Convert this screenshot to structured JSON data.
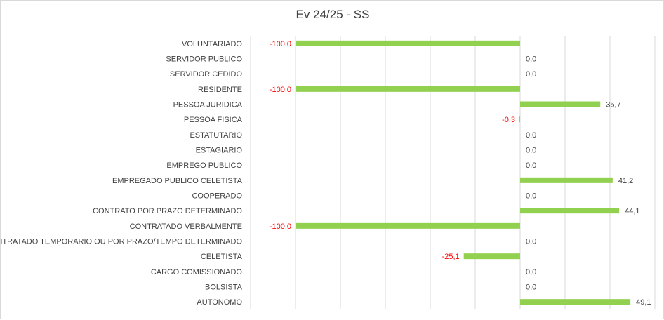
{
  "chart_data": {
    "type": "bar",
    "orientation": "horizontal",
    "title": "Ev 24/25 - SS",
    "categories": [
      "VOLUNTARIADO",
      "SERVIDOR PUBLICO",
      "SERVIDOR CEDIDO",
      "RESIDENTE",
      "PESSOA JURIDICA",
      "PESSOA FISICA",
      "ESTATUTARIO",
      "ESTAGIARIO",
      "EMPREGO PUBLICO",
      "EMPREGADO PUBLICO CELETISTA",
      "COOPERADO",
      "CONTRATO POR PRAZO DETERMINADO",
      "CONTRATADO VERBALMENTE",
      "CONTRATADO TEMPORARIO OU POR PRAZO/TEMPO DETERMINADO",
      "CELETISTA",
      "CARGO COMISSIONADO",
      "BOLSISTA",
      "AUTONOMO"
    ],
    "values": [
      -100,
      0,
      0,
      -100,
      35.7,
      -0.3,
      0,
      0,
      0,
      41.2,
      0,
      44.1,
      -100,
      0,
      -25.1,
      0,
      0,
      49.1
    ],
    "value_labels": [
      "-100,0",
      "0,0",
      "0,0",
      "-100,0",
      "35,7",
      "-0,3",
      "0,0",
      "0,0",
      "0,0",
      "41,2",
      "0,0",
      "44,1",
      "-100,0",
      "0,0",
      "-25,1",
      "0,0",
      "0,0",
      "49,1"
    ],
    "xlim": [
      -100,
      60
    ],
    "grid": true,
    "legend": "none",
    "colors": {
      "bar": "#92d050",
      "negative_label": "#ff0000",
      "positive_label": "#404040",
      "grid": "#d9d9d9"
    }
  }
}
